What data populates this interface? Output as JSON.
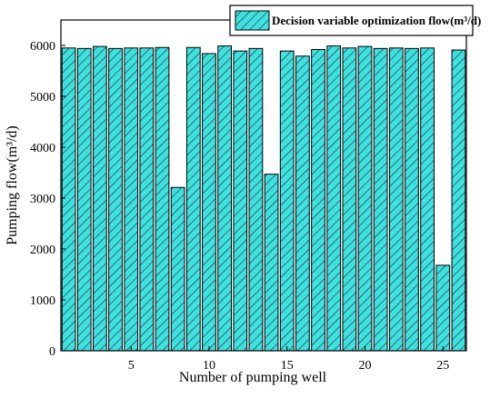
{
  "chart_data": {
    "type": "bar",
    "title": "",
    "xlabel": "Number of pumping well",
    "ylabel": "Pumping flow(m³/d)",
    "xlim": [
      0.5,
      26.5
    ],
    "ylim": [
      0,
      6500
    ],
    "x_ticks": [
      5,
      10,
      15,
      20,
      25
    ],
    "y_ticks": [
      0,
      1000,
      2000,
      3000,
      4000,
      5000,
      6000
    ],
    "grid": false,
    "legend_position": "top-right",
    "bar_fill": "#3ee0e0",
    "bar_hatch": "#1a1a1a",
    "series": [
      {
        "name": "Decision variable optimization flow(m³/d)",
        "x": [
          1,
          2,
          3,
          4,
          5,
          6,
          7,
          8,
          9,
          10,
          11,
          12,
          13,
          14,
          15,
          16,
          17,
          18,
          19,
          20,
          21,
          22,
          23,
          24,
          25,
          26
        ],
        "values": [
          5950,
          5940,
          5980,
          5940,
          5950,
          5950,
          5960,
          3210,
          5960,
          5840,
          5990,
          5890,
          5940,
          3470,
          5890,
          5790,
          5920,
          5990,
          5950,
          5980,
          5940,
          5950,
          5940,
          5950,
          1680,
          5910
        ]
      }
    ]
  }
}
